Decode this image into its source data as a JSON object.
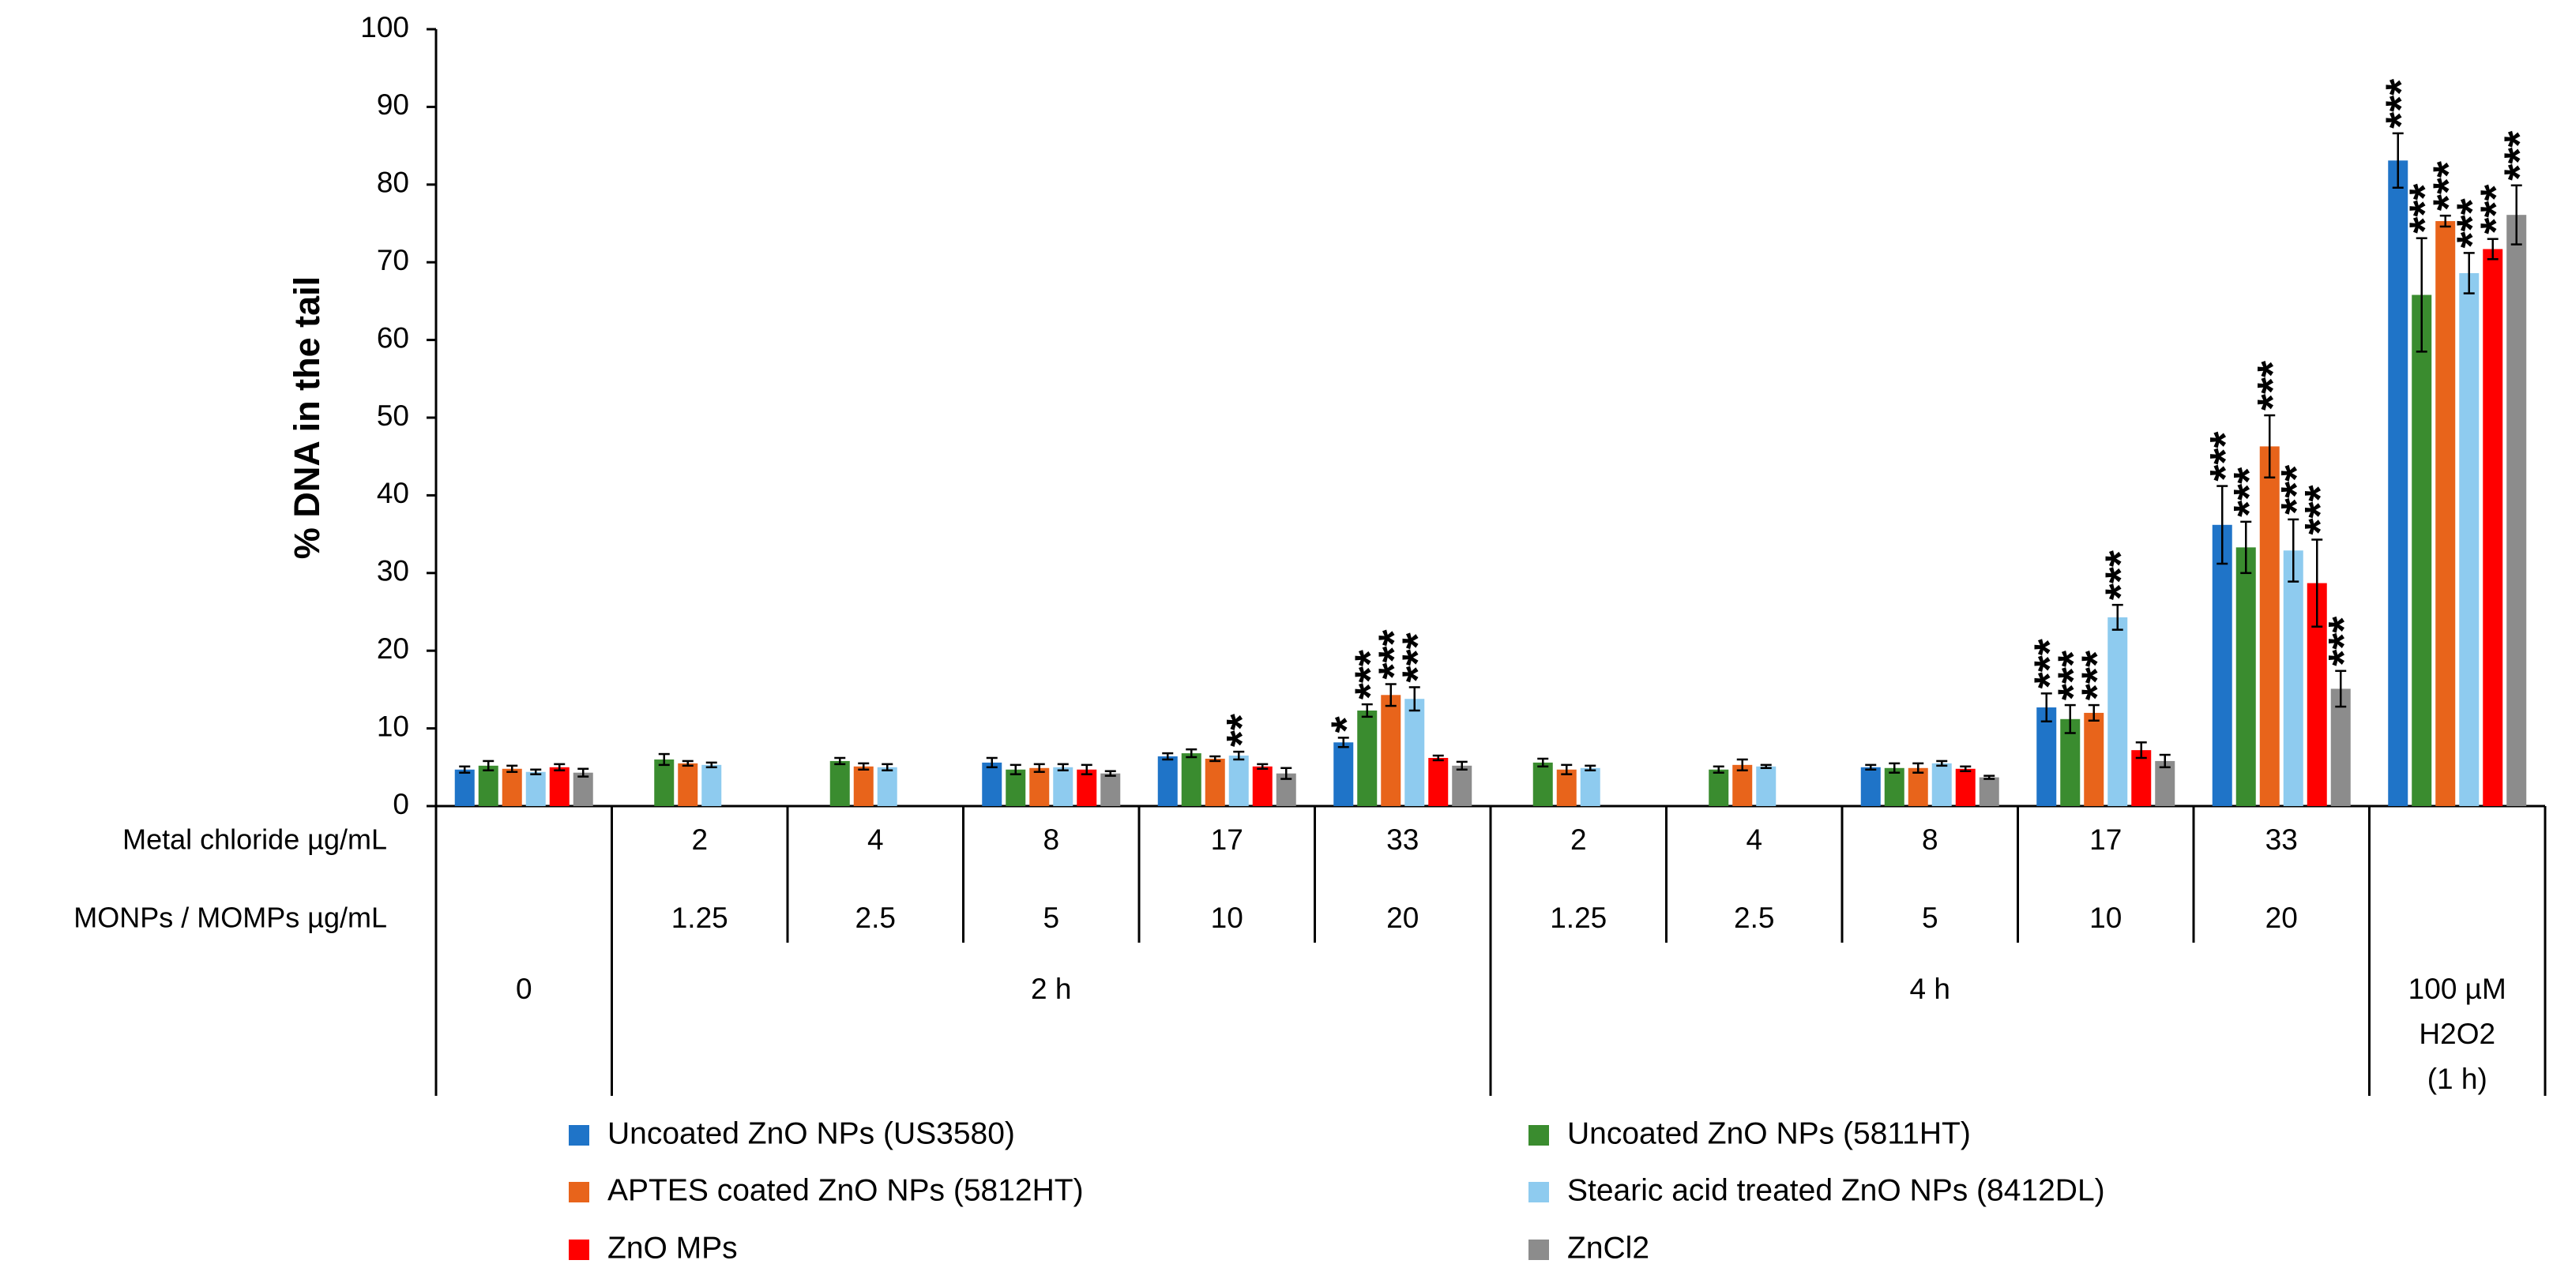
{
  "chart_data": {
    "type": "bar",
    "y_label": "% DNA in the tail",
    "categories": [
      "0",
      "2 h",
      "2 h",
      "2 h",
      "2 h",
      "2 h",
      "4 h",
      "4 h",
      "4 h",
      "4 h",
      "4 h",
      "100 µM\nH2O2\n(1 h)"
    ],
    "table": [
      {
        "label": "Metal chloride µg/mL",
        "values": [
          null,
          2,
          4,
          8,
          17,
          33,
          2,
          4,
          8,
          17,
          33,
          null
        ]
      },
      {
        "label": "MONPs / MOMPs µg/mL",
        "values": [
          null,
          1.25,
          2.5,
          5,
          10,
          20,
          1.25,
          2.5,
          5,
          10,
          20,
          null
        ]
      }
    ],
    "series": [
      {
        "name": "Uncoated ZnO NPs (US3580)",
        "color": "#1f74c8",
        "values": [
          4.7,
          null,
          null,
          5.6,
          6.4,
          8.2,
          null,
          null,
          5.0,
          12.7,
          36.2,
          83.1
        ],
        "errors": [
          0.4,
          null,
          null,
          0.6,
          0.4,
          0.6,
          null,
          null,
          0.3,
          1.8,
          5.0,
          3.5
        ],
        "significance": [
          null,
          null,
          null,
          null,
          null,
          "*",
          null,
          null,
          null,
          "***",
          "***",
          "***"
        ]
      },
      {
        "name": "Uncoated ZnO NPs (5811HT)",
        "color": "#3a8c2f",
        "values": [
          5.2,
          6.0,
          5.8,
          4.7,
          6.8,
          12.3,
          5.6,
          4.7,
          4.9,
          11.2,
          33.3,
          65.8
        ],
        "errors": [
          0.6,
          0.7,
          0.4,
          0.6,
          0.5,
          0.8,
          0.5,
          0.4,
          0.6,
          1.8,
          3.3,
          7.3
        ],
        "significance": [
          null,
          null,
          null,
          null,
          null,
          "***",
          null,
          null,
          null,
          "***",
          "***",
          "***"
        ]
      },
      {
        "name": "APTES coated ZnO NPs (5812HT)",
        "color": "#e8641b",
        "values": [
          4.8,
          5.5,
          5.1,
          4.9,
          6.1,
          14.3,
          4.7,
          5.3,
          4.9,
          12.0,
          46.3,
          75.3
        ],
        "errors": [
          0.4,
          0.3,
          0.4,
          0.5,
          0.3,
          1.4,
          0.6,
          0.7,
          0.6,
          1.0,
          4.0,
          0.7
        ],
        "significance": [
          null,
          null,
          null,
          null,
          null,
          "***",
          null,
          null,
          null,
          "***",
          "***",
          "***"
        ]
      },
      {
        "name": "Stearic acid treated ZnO NPs (8412DL)",
        "color": "#8ecbef",
        "values": [
          4.4,
          5.3,
          5.0,
          5.0,
          6.5,
          13.8,
          4.9,
          5.1,
          5.5,
          24.3,
          32.9,
          68.6
        ],
        "errors": [
          0.3,
          0.3,
          0.4,
          0.4,
          0.5,
          1.5,
          0.3,
          0.2,
          0.3,
          1.6,
          4.0,
          2.6
        ],
        "significance": [
          null,
          null,
          null,
          null,
          "**",
          "***",
          null,
          null,
          null,
          "***",
          "***",
          "***"
        ]
      },
      {
        "name": "ZnO MPs",
        "color": "#ff0000",
        "values": [
          5.0,
          null,
          null,
          4.7,
          5.1,
          6.2,
          null,
          null,
          4.8,
          7.2,
          28.7,
          71.7
        ],
        "errors": [
          0.4,
          null,
          null,
          0.6,
          0.3,
          0.3,
          null,
          null,
          0.3,
          1.0,
          5.6,
          1.3
        ],
        "significance": [
          null,
          null,
          null,
          null,
          null,
          null,
          null,
          null,
          null,
          null,
          "***",
          "***"
        ]
      },
      {
        "name": "ZnCl2",
        "color": "#8c8c8c",
        "values": [
          4.3,
          null,
          null,
          4.2,
          4.2,
          5.2,
          null,
          null,
          3.7,
          5.8,
          15.1,
          76.1
        ],
        "errors": [
          0.5,
          null,
          null,
          0.3,
          0.7,
          0.5,
          null,
          null,
          0.2,
          0.8,
          2.3,
          3.8
        ],
        "significance": [
          null,
          null,
          null,
          null,
          null,
          null,
          null,
          null,
          null,
          null,
          "***",
          "***"
        ]
      }
    ],
    "ylim": [
      0,
      100
    ],
    "yticks": [
      0,
      10,
      20,
      30,
      40,
      50,
      60,
      70,
      80,
      90,
      100
    ],
    "grid": false
  }
}
